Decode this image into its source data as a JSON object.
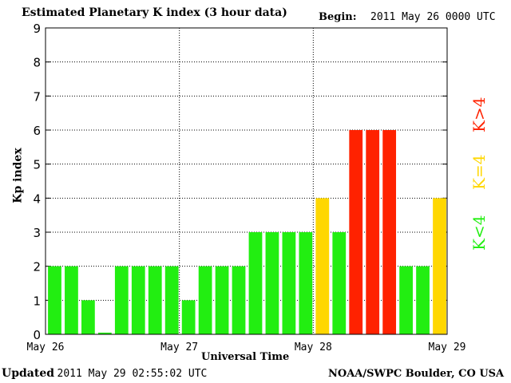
{
  "header": {
    "title": "Estimated Planetary K index (3 hour data)",
    "begin_label": "Begin:",
    "begin_value": "2011 May 26 0000 UTC"
  },
  "footer": {
    "updated_label": "Updated",
    "updated_value": "2011 May 29 02:55:02 UTC",
    "source": "NOAA/SWPC Boulder, CO USA"
  },
  "legend": {
    "low": "K<4",
    "equal": "K=4",
    "high": "K>4"
  },
  "colors": {
    "low": "#22ee11",
    "equal": "#ffd700",
    "high": "#ff2200",
    "grid": "#000000"
  },
  "chart_data": {
    "type": "bar",
    "title": "Estimated Planetary K index (3 hour data)",
    "xlabel": "Universal Time",
    "ylabel": "Kp index",
    "ylim": [
      0,
      9
    ],
    "yticks": [
      "0",
      "1",
      "2",
      "3",
      "4",
      "5",
      "6",
      "7",
      "8",
      "9"
    ],
    "xticks": [
      "May 26",
      "May 27",
      "May 28",
      "May 29"
    ],
    "grid": true,
    "values": [
      2,
      2,
      1,
      0.05,
      2,
      2,
      2,
      2,
      1,
      2,
      2,
      2,
      3,
      3,
      3,
      3,
      4,
      3,
      6,
      6,
      6,
      2,
      2,
      4
    ],
    "color_rule": "green if K<4, yellow if K=4, red if K>4"
  }
}
